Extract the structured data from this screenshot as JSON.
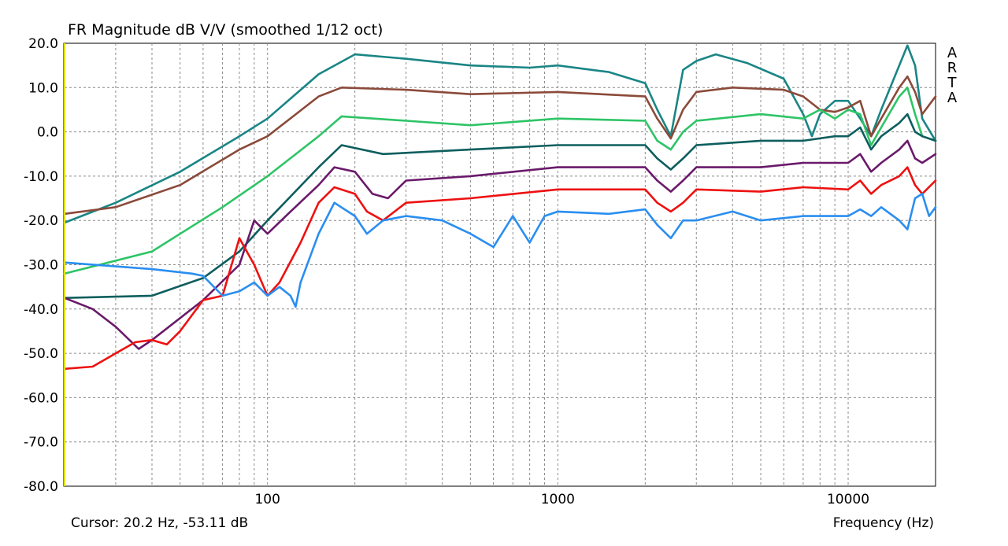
{
  "chart_data": {
    "type": "line",
    "title": "FR Magnitude dB V/V (smoothed 1/12 oct)",
    "xlabel": "Frequency (Hz)",
    "ylabel": "",
    "x_scale": "log",
    "xlim": [
      20,
      20000
    ],
    "ylim": [
      -80,
      20
    ],
    "y_ticks": [
      "20.0",
      "10.0",
      "0.0",
      "-10.0",
      "-20.0",
      "-30.0",
      "-40.0",
      "-50.0",
      "-60.0",
      "-70.0",
      "-80.0"
    ],
    "x_ticks": [
      {
        "value": 100,
        "label": "100"
      },
      {
        "value": 1000,
        "label": "1000"
      },
      {
        "value": 10000,
        "label": "10000"
      }
    ],
    "grid": true,
    "cursor_text": "Cursor: 20.2 Hz, -53.11 dB",
    "brand": [
      "A",
      "R",
      "T",
      "A"
    ],
    "series": [
      {
        "color": "#1a8585",
        "points": [
          [
            20,
            -20.5
          ],
          [
            30,
            -16
          ],
          [
            50,
            -9
          ],
          [
            80,
            -1
          ],
          [
            100,
            3
          ],
          [
            150,
            13
          ],
          [
            200,
            17.5
          ],
          [
            300,
            16.5
          ],
          [
            500,
            15
          ],
          [
            800,
            14.5
          ],
          [
            1000,
            15
          ],
          [
            1500,
            13.5
          ],
          [
            2000,
            11
          ],
          [
            2200,
            5
          ],
          [
            2450,
            -1
          ],
          [
            2700,
            14
          ],
          [
            3000,
            16
          ],
          [
            3500,
            17.5
          ],
          [
            4500,
            15.5
          ],
          [
            6000,
            12
          ],
          [
            7000,
            4
          ],
          [
            7500,
            -1
          ],
          [
            8000,
            4
          ],
          [
            9000,
            7
          ],
          [
            10000,
            7
          ],
          [
            11000,
            3
          ],
          [
            12000,
            -1
          ],
          [
            13000,
            5
          ],
          [
            15000,
            15
          ],
          [
            16000,
            19.5
          ],
          [
            17000,
            15
          ],
          [
            18000,
            3
          ],
          [
            20000,
            -2
          ]
        ]
      },
      {
        "color": "#8b4a3a",
        "points": [
          [
            20,
            -18.5
          ],
          [
            30,
            -17
          ],
          [
            50,
            -12
          ],
          [
            80,
            -4
          ],
          [
            100,
            -1
          ],
          [
            150,
            8
          ],
          [
            180,
            10
          ],
          [
            300,
            9.5
          ],
          [
            500,
            8.5
          ],
          [
            1000,
            9
          ],
          [
            2000,
            8
          ],
          [
            2200,
            3
          ],
          [
            2450,
            -1.5
          ],
          [
            2700,
            5
          ],
          [
            3000,
            9
          ],
          [
            4000,
            10
          ],
          [
            6000,
            9.5
          ],
          [
            7000,
            8
          ],
          [
            8000,
            5
          ],
          [
            9000,
            4.5
          ],
          [
            10000,
            5.5
          ],
          [
            11000,
            7
          ],
          [
            12000,
            -1
          ],
          [
            13000,
            3
          ],
          [
            15000,
            10
          ],
          [
            16000,
            12.5
          ],
          [
            17000,
            9
          ],
          [
            18000,
            4
          ],
          [
            20000,
            8
          ]
        ]
      },
      {
        "color": "#2ec466",
        "points": [
          [
            20,
            -32
          ],
          [
            40,
            -27
          ],
          [
            70,
            -17
          ],
          [
            100,
            -10
          ],
          [
            150,
            -1
          ],
          [
            180,
            3.5
          ],
          [
            300,
            2.5
          ],
          [
            500,
            1.5
          ],
          [
            1000,
            3
          ],
          [
            2000,
            2.5
          ],
          [
            2200,
            -2
          ],
          [
            2450,
            -4
          ],
          [
            2700,
            0
          ],
          [
            3000,
            2.5
          ],
          [
            5000,
            4
          ],
          [
            7000,
            3
          ],
          [
            8000,
            5
          ],
          [
            9000,
            3
          ],
          [
            10000,
            5
          ],
          [
            11000,
            4
          ],
          [
            12000,
            -3
          ],
          [
            13000,
            1
          ],
          [
            15000,
            8
          ],
          [
            16000,
            10
          ],
          [
            17000,
            4
          ],
          [
            18000,
            -1
          ],
          [
            20000,
            -2
          ]
        ]
      },
      {
        "color": "#0e5e5e",
        "points": [
          [
            20,
            -37.5
          ],
          [
            40,
            -37
          ],
          [
            60,
            -33
          ],
          [
            80,
            -27
          ],
          [
            100,
            -20
          ],
          [
            150,
            -8
          ],
          [
            180,
            -3
          ],
          [
            250,
            -5
          ],
          [
            500,
            -4
          ],
          [
            1000,
            -3
          ],
          [
            2000,
            -3
          ],
          [
            2200,
            -6
          ],
          [
            2450,
            -8.5
          ],
          [
            2700,
            -6
          ],
          [
            3000,
            -3
          ],
          [
            5000,
            -2
          ],
          [
            7000,
            -2
          ],
          [
            9000,
            -1
          ],
          [
            10000,
            -1
          ],
          [
            11000,
            1
          ],
          [
            12000,
            -4
          ],
          [
            13000,
            -1
          ],
          [
            15000,
            2
          ],
          [
            16000,
            4
          ],
          [
            17000,
            0
          ],
          [
            18000,
            -1
          ],
          [
            20000,
            -2
          ]
        ]
      },
      {
        "color": "#6a1a6a",
        "points": [
          [
            20,
            -37.5
          ],
          [
            25,
            -40
          ],
          [
            30,
            -44
          ],
          [
            36,
            -49
          ],
          [
            40,
            -47
          ],
          [
            60,
            -38
          ],
          [
            80,
            -30
          ],
          [
            90,
            -20
          ],
          [
            100,
            -23
          ],
          [
            120,
            -18
          ],
          [
            150,
            -12
          ],
          [
            170,
            -8
          ],
          [
            200,
            -9
          ],
          [
            230,
            -14
          ],
          [
            260,
            -15
          ],
          [
            300,
            -11
          ],
          [
            500,
            -10
          ],
          [
            1000,
            -8
          ],
          [
            2000,
            -8
          ],
          [
            2200,
            -11
          ],
          [
            2450,
            -13.5
          ],
          [
            2700,
            -11
          ],
          [
            3000,
            -8
          ],
          [
            5000,
            -8
          ],
          [
            7000,
            -7
          ],
          [
            10000,
            -7
          ],
          [
            11000,
            -5
          ],
          [
            12000,
            -9
          ],
          [
            13000,
            -7
          ],
          [
            15000,
            -4
          ],
          [
            16000,
            -2
          ],
          [
            17000,
            -6
          ],
          [
            18000,
            -7
          ],
          [
            20000,
            -5
          ]
        ]
      },
      {
        "color": "#ee1111",
        "points": [
          [
            20,
            -53.5
          ],
          [
            25,
            -53
          ],
          [
            30,
            -50
          ],
          [
            35,
            -47.5
          ],
          [
            40,
            -47
          ],
          [
            45,
            -48
          ],
          [
            50,
            -45
          ],
          [
            60,
            -38
          ],
          [
            70,
            -37
          ],
          [
            80,
            -24
          ],
          [
            90,
            -30
          ],
          [
            100,
            -37
          ],
          [
            110,
            -34
          ],
          [
            130,
            -25
          ],
          [
            150,
            -16
          ],
          [
            170,
            -12.5
          ],
          [
            200,
            -14
          ],
          [
            220,
            -18
          ],
          [
            250,
            -20
          ],
          [
            300,
            -16
          ],
          [
            500,
            -15
          ],
          [
            1000,
            -13
          ],
          [
            2000,
            -13
          ],
          [
            2200,
            -16
          ],
          [
            2450,
            -18
          ],
          [
            2700,
            -16
          ],
          [
            3000,
            -13
          ],
          [
            5000,
            -13.5
          ],
          [
            7000,
            -12.5
          ],
          [
            10000,
            -13
          ],
          [
            11000,
            -11
          ],
          [
            12000,
            -14
          ],
          [
            13000,
            -12
          ],
          [
            15000,
            -10
          ],
          [
            16000,
            -8
          ],
          [
            17000,
            -12
          ],
          [
            18000,
            -14
          ],
          [
            20000,
            -11
          ]
        ]
      },
      {
        "color": "#2a8ef0",
        "points": [
          [
            20,
            -29.5
          ],
          [
            40,
            -31
          ],
          [
            55,
            -32
          ],
          [
            60,
            -32.5
          ],
          [
            70,
            -37
          ],
          [
            80,
            -36
          ],
          [
            90,
            -34
          ],
          [
            100,
            -37
          ],
          [
            110,
            -35
          ],
          [
            120,
            -37
          ],
          [
            125,
            -39.5
          ],
          [
            130,
            -34
          ],
          [
            150,
            -23
          ],
          [
            170,
            -16
          ],
          [
            200,
            -19
          ],
          [
            220,
            -23
          ],
          [
            250,
            -20
          ],
          [
            300,
            -19
          ],
          [
            400,
            -20
          ],
          [
            500,
            -23
          ],
          [
            600,
            -26
          ],
          [
            700,
            -19
          ],
          [
            800,
            -25
          ],
          [
            900,
            -19
          ],
          [
            1000,
            -18
          ],
          [
            1500,
            -18.5
          ],
          [
            2000,
            -17.5
          ],
          [
            2200,
            -21
          ],
          [
            2450,
            -24
          ],
          [
            2700,
            -20
          ],
          [
            3000,
            -20
          ],
          [
            4000,
            -18
          ],
          [
            5000,
            -20
          ],
          [
            7000,
            -19
          ],
          [
            10000,
            -19
          ],
          [
            11000,
            -17.5
          ],
          [
            12000,
            -19
          ],
          [
            13000,
            -17
          ],
          [
            15000,
            -20
          ],
          [
            16000,
            -22
          ],
          [
            17000,
            -15
          ],
          [
            18000,
            -14
          ],
          [
            19000,
            -19
          ],
          [
            20000,
            -17
          ]
        ]
      }
    ]
  }
}
